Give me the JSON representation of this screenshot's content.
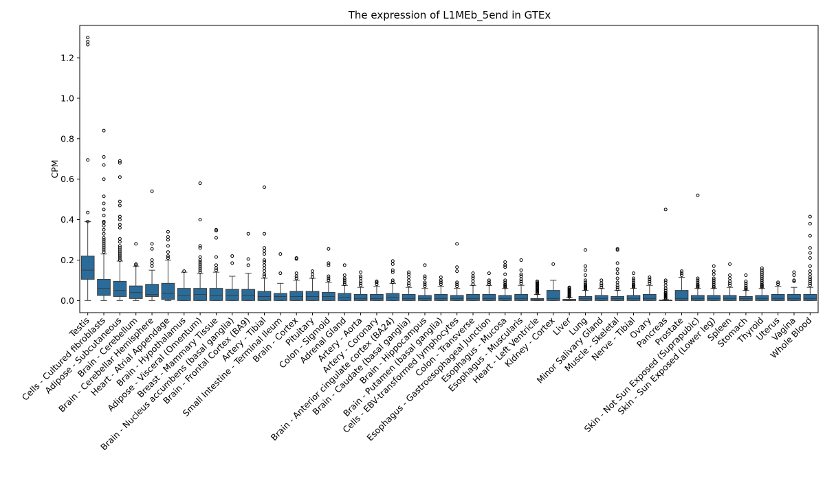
{
  "chart_data": {
    "type": "boxplot",
    "title": "The expression of L1MEb_5end in GTEx",
    "xlabel": "",
    "ylabel": "CPM",
    "ylim": [
      -0.06,
      1.36
    ],
    "yticks": [
      "0.0",
      "0.2",
      "0.4",
      "0.6",
      "0.8",
      "1.0",
      "1.2"
    ],
    "grid": false,
    "legend": "none",
    "box_color": "#2a6b9a",
    "categories": [
      "Testis",
      "Cells - Cultured fibroblasts",
      "Adipose - Subcutaneous",
      "Brain - Cerebellum",
      "Brain - Cerebellar Hemisphere",
      "Heart - Atrial Appendage",
      "Brain - Hypothalamus",
      "Adipose - Visceral (Omentum)",
      "Breast - Mammary Tissue",
      "Brain - Nucleus accumbens (basal ganglia)",
      "Brain - Frontal Cortex (BA9)",
      "Artery - Tibial",
      "Small Intestine - Terminal Ileum",
      "Brain - Cortex",
      "Pituitary",
      "Colon - Sigmoid",
      "Adrenal Gland",
      "Artery - Aorta",
      "Artery - Coronary",
      "Brain - Anterior cingulate cortex (BA24)",
      "Brain - Caudate (basal ganglia)",
      "Brain - Hippocampus",
      "Brain - Putamen (basal ganglia)",
      "Cells - EBV-transformed lymphocytes",
      "Colon - Transverse",
      "Esophagus - Gastroesophageal Junction",
      "Esophagus - Mucosa",
      "Esophagus - Muscularis",
      "Heart - Left Ventricle",
      "Kidney - Cortex",
      "Liver",
      "Lung",
      "Minor Salivary Gland",
      "Muscle - Skeletal",
      "Nerve - Tibial",
      "Ovary",
      "Pancreas",
      "Prostate",
      "Skin - Not Sun Exposed (Suprapubic)",
      "Skin - Sun Exposed (Lower leg)",
      "Spleen",
      "Stomach",
      "Thyroid",
      "Uterus",
      "Vagina",
      "Whole Blood"
    ],
    "boxes": [
      {
        "min": 0.0,
        "q1": 0.105,
        "median": 0.15,
        "q3": 0.22,
        "max": 0.39,
        "outliers": [
          0.39,
          0.435,
          0.695,
          1.265,
          1.28,
          1.3
        ]
      },
      {
        "min": 0.0,
        "q1": 0.025,
        "median": 0.06,
        "q3": 0.105,
        "max": 0.23,
        "outliers": [
          0.24,
          0.25,
          0.26,
          0.27,
          0.28,
          0.29,
          0.3,
          0.31,
          0.33,
          0.35,
          0.37,
          0.385,
          0.39,
          0.42,
          0.45,
          0.48,
          0.515,
          0.6,
          0.67,
          0.71,
          0.84
        ]
      },
      {
        "min": 0.0,
        "q1": 0.02,
        "median": 0.05,
        "q3": 0.095,
        "max": 0.195,
        "outliers": [
          0.2,
          0.21,
          0.22,
          0.23,
          0.24,
          0.25,
          0.26,
          0.27,
          0.29,
          0.305,
          0.36,
          0.375,
          0.4,
          0.415,
          0.47,
          0.49,
          0.61,
          0.68,
          0.69
        ]
      },
      {
        "min": 0.0,
        "q1": 0.01,
        "median": 0.04,
        "q3": 0.072,
        "max": 0.17,
        "outliers": [
          0.175,
          0.18,
          0.28
        ]
      },
      {
        "min": 0.0,
        "q1": 0.02,
        "median": 0.03,
        "q3": 0.08,
        "max": 0.15,
        "outliers": [
          0.17,
          0.185,
          0.2,
          0.255,
          0.28,
          0.54
        ]
      },
      {
        "min": 0.0,
        "q1": 0.005,
        "median": 0.035,
        "q3": 0.085,
        "max": 0.2,
        "outliers": [
          0.21,
          0.22,
          0.24,
          0.27,
          0.3,
          0.315,
          0.34
        ]
      },
      {
        "min": 0.0,
        "q1": 0.0,
        "median": 0.025,
        "q3": 0.06,
        "max": 0.14,
        "outliers": [
          0.145
        ]
      },
      {
        "min": 0.0,
        "q1": 0.0,
        "median": 0.03,
        "q3": 0.06,
        "max": 0.135,
        "outliers": [
          0.14,
          0.15,
          0.16,
          0.17,
          0.18,
          0.19,
          0.2,
          0.215,
          0.26,
          0.27,
          0.4,
          0.58
        ]
      },
      {
        "min": 0.0,
        "q1": 0.0,
        "median": 0.025,
        "q3": 0.06,
        "max": 0.14,
        "outliers": [
          0.15,
          0.16,
          0.175,
          0.215,
          0.31,
          0.345,
          0.35
        ]
      },
      {
        "min": 0.0,
        "q1": 0.0,
        "median": 0.025,
        "q3": 0.055,
        "max": 0.12,
        "outliers": [
          0.185,
          0.22
        ]
      },
      {
        "min": 0.0,
        "q1": 0.0,
        "median": 0.025,
        "q3": 0.055,
        "max": 0.135,
        "outliers": [
          0.175,
          0.205,
          0.33
        ]
      },
      {
        "min": 0.0,
        "q1": 0.0,
        "median": 0.02,
        "q3": 0.045,
        "max": 0.11,
        "outliers": [
          0.12,
          0.13,
          0.145,
          0.16,
          0.175,
          0.19,
          0.2,
          0.23,
          0.245,
          0.26,
          0.33,
          0.56
        ]
      },
      {
        "min": 0.0,
        "q1": 0.0,
        "median": 0.02,
        "q3": 0.035,
        "max": 0.085,
        "outliers": [
          0.135,
          0.23
        ]
      },
      {
        "min": 0.0,
        "q1": 0.0,
        "median": 0.02,
        "q3": 0.045,
        "max": 0.1,
        "outliers": [
          0.11,
          0.12,
          0.135,
          0.205,
          0.21
        ]
      },
      {
        "min": 0.0,
        "q1": 0.0,
        "median": 0.02,
        "q3": 0.045,
        "max": 0.11,
        "outliers": [
          0.115,
          0.13,
          0.145
        ]
      },
      {
        "min": 0.0,
        "q1": 0.0,
        "median": 0.02,
        "q3": 0.04,
        "max": 0.09,
        "outliers": [
          0.1,
          0.11,
          0.12,
          0.175,
          0.185,
          0.255
        ]
      },
      {
        "min": 0.0,
        "q1": 0.0,
        "median": 0.015,
        "q3": 0.035,
        "max": 0.075,
        "outliers": [
          0.08,
          0.09,
          0.1,
          0.11,
          0.125,
          0.175
        ]
      },
      {
        "min": 0.0,
        "q1": 0.0,
        "median": 0.01,
        "q3": 0.03,
        "max": 0.065,
        "outliers": [
          0.075,
          0.085,
          0.095,
          0.11,
          0.12,
          0.14
        ]
      },
      {
        "min": 0.0,
        "q1": 0.0,
        "median": 0.01,
        "q3": 0.03,
        "max": 0.07,
        "outliers": [
          0.08,
          0.09,
          0.095
        ]
      },
      {
        "min": 0.0,
        "q1": 0.0,
        "median": 0.015,
        "q3": 0.035,
        "max": 0.085,
        "outliers": [
          0.09,
          0.1,
          0.14,
          0.15,
          0.18,
          0.195
        ]
      },
      {
        "min": 0.0,
        "q1": 0.0,
        "median": 0.01,
        "q3": 0.03,
        "max": 0.065,
        "outliers": [
          0.075,
          0.085,
          0.1,
          0.115,
          0.13,
          0.14
        ]
      },
      {
        "min": 0.0,
        "q1": 0.0,
        "median": 0.01,
        "q3": 0.025,
        "max": 0.06,
        "outliers": [
          0.07,
          0.08,
          0.09,
          0.11,
          0.12,
          0.175
        ]
      },
      {
        "min": 0.0,
        "q1": 0.0,
        "median": 0.01,
        "q3": 0.03,
        "max": 0.07,
        "outliers": [
          0.08,
          0.09,
          0.1,
          0.115
        ]
      },
      {
        "min": 0.0,
        "q1": 0.0,
        "median": 0.01,
        "q3": 0.025,
        "max": 0.06,
        "outliers": [
          0.07,
          0.08,
          0.09,
          0.145,
          0.165,
          0.28
        ]
      },
      {
        "min": 0.0,
        "q1": 0.0,
        "median": 0.01,
        "q3": 0.03,
        "max": 0.075,
        "outliers": [
          0.08,
          0.095,
          0.11,
          0.12,
          0.135
        ]
      },
      {
        "min": 0.0,
        "q1": 0.0,
        "median": 0.01,
        "q3": 0.03,
        "max": 0.075,
        "outliers": [
          0.08,
          0.09,
          0.1,
          0.135
        ]
      },
      {
        "min": 0.0,
        "q1": 0.0,
        "median": 0.01,
        "q3": 0.025,
        "max": 0.06,
        "outliers": [
          0.065,
          0.07,
          0.075,
          0.08,
          0.09,
          0.1,
          0.13,
          0.165,
          0.175,
          0.19
        ]
      },
      {
        "min": 0.0,
        "q1": 0.0,
        "median": 0.01,
        "q3": 0.03,
        "max": 0.075,
        "outliers": [
          0.085,
          0.095,
          0.105,
          0.12,
          0.13,
          0.15,
          0.2
        ]
      },
      {
        "min": 0.0,
        "q1": 0.0,
        "median": 0.005,
        "q3": 0.01,
        "max": 0.03,
        "outliers": [
          0.035,
          0.04,
          0.045,
          0.05,
          0.055,
          0.06,
          0.065,
          0.07,
          0.075,
          0.08,
          0.085,
          0.09,
          0.095
        ]
      },
      {
        "min": 0.0,
        "q1": 0.0,
        "median": 0.01,
        "q3": 0.05,
        "max": 0.1,
        "outliers": [
          0.18
        ]
      },
      {
        "min": 0.0,
        "q1": 0.0,
        "median": 0.003,
        "q3": 0.006,
        "max": 0.014,
        "outliers": [
          0.018,
          0.022,
          0.026,
          0.03,
          0.035,
          0.04,
          0.045,
          0.05,
          0.055,
          0.06,
          0.065
        ]
      },
      {
        "min": 0.0,
        "q1": 0.0,
        "median": 0.01,
        "q3": 0.02,
        "max": 0.05,
        "outliers": [
          0.055,
          0.06,
          0.065,
          0.07,
          0.075,
          0.08,
          0.09,
          0.1,
          0.125,
          0.15,
          0.17,
          0.25
        ]
      },
      {
        "min": 0.0,
        "q1": 0.0,
        "median": 0.01,
        "q3": 0.025,
        "max": 0.06,
        "outliers": [
          0.065,
          0.075,
          0.085,
          0.1
        ]
      },
      {
        "min": 0.0,
        "q1": 0.0,
        "median": 0.01,
        "q3": 0.02,
        "max": 0.05,
        "outliers": [
          0.055,
          0.065,
          0.075,
          0.09,
          0.11,
          0.135,
          0.155,
          0.185,
          0.25,
          0.255
        ]
      },
      {
        "min": 0.0,
        "q1": 0.0,
        "median": 0.01,
        "q3": 0.025,
        "max": 0.06,
        "outliers": [
          0.065,
          0.07,
          0.075,
          0.08,
          0.09,
          0.1,
          0.11,
          0.135
        ]
      },
      {
        "min": 0.0,
        "q1": 0.0,
        "median": 0.01,
        "q3": 0.03,
        "max": 0.075,
        "outliers": [
          0.085,
          0.095,
          0.105,
          0.115
        ]
      },
      {
        "min": 0.0,
        "q1": 0.0,
        "median": 0.0,
        "q3": 0.002,
        "max": 0.005,
        "outliers": [
          0.01,
          0.015,
          0.02,
          0.025,
          0.03,
          0.035,
          0.04,
          0.05,
          0.06,
          0.075,
          0.09,
          0.1,
          0.45
        ]
      },
      {
        "min": 0.0,
        "q1": 0.0,
        "median": 0.01,
        "q3": 0.05,
        "max": 0.115,
        "outliers": [
          0.125,
          0.135,
          0.145
        ]
      },
      {
        "min": 0.0,
        "q1": 0.0,
        "median": 0.01,
        "q3": 0.025,
        "max": 0.06,
        "outliers": [
          0.065,
          0.07,
          0.075,
          0.08,
          0.09,
          0.1,
          0.11,
          0.52
        ]
      },
      {
        "min": 0.0,
        "q1": 0.0,
        "median": 0.01,
        "q3": 0.025,
        "max": 0.06,
        "outliers": [
          0.065,
          0.07,
          0.08,
          0.09,
          0.1,
          0.11,
          0.13,
          0.145,
          0.17
        ]
      },
      {
        "min": 0.0,
        "q1": 0.0,
        "median": 0.01,
        "q3": 0.025,
        "max": 0.065,
        "outliers": [
          0.075,
          0.085,
          0.095,
          0.11,
          0.125,
          0.18
        ]
      },
      {
        "min": 0.0,
        "q1": 0.0,
        "median": 0.01,
        "q3": 0.02,
        "max": 0.05,
        "outliers": [
          0.055,
          0.06,
          0.065,
          0.075,
          0.085,
          0.095,
          0.125
        ]
      },
      {
        "min": 0.0,
        "q1": 0.0,
        "median": 0.01,
        "q3": 0.025,
        "max": 0.06,
        "outliers": [
          0.065,
          0.07,
          0.075,
          0.08,
          0.09,
          0.1,
          0.11,
          0.12,
          0.13,
          0.14,
          0.15,
          0.16
        ]
      },
      {
        "min": 0.0,
        "q1": 0.0,
        "median": 0.01,
        "q3": 0.03,
        "max": 0.07,
        "outliers": [
          0.08,
          0.09
        ]
      },
      {
        "min": 0.0,
        "q1": 0.0,
        "median": 0.01,
        "q3": 0.03,
        "max": 0.065,
        "outliers": [
          0.095,
          0.1,
          0.125,
          0.14
        ]
      },
      {
        "min": 0.0,
        "q1": 0.0,
        "median": 0.01,
        "q3": 0.03,
        "max": 0.065,
        "outliers": [
          0.075,
          0.085,
          0.095,
          0.105,
          0.115,
          0.13,
          0.145,
          0.17,
          0.21,
          0.235,
          0.26,
          0.32,
          0.38,
          0.415
        ]
      }
    ]
  }
}
